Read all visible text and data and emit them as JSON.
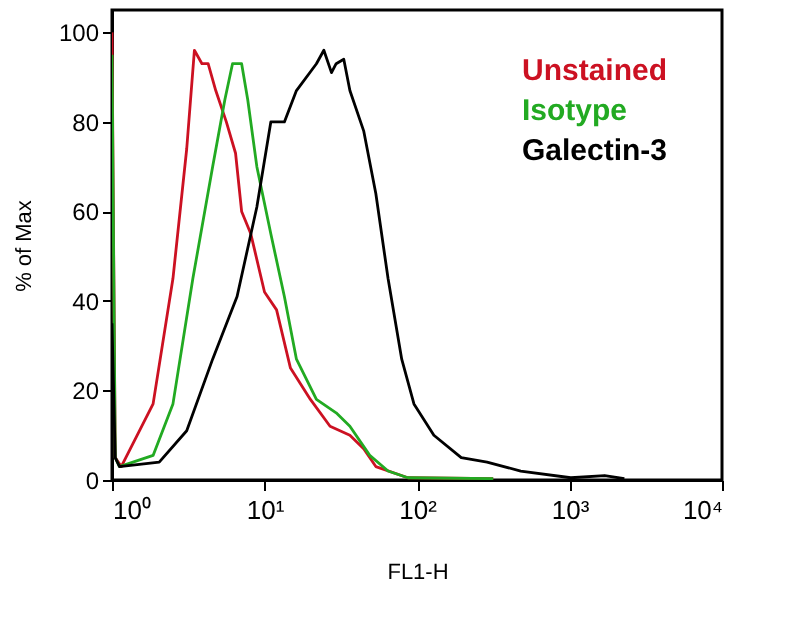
{
  "chart_data": {
    "type": "line",
    "xlabel": "FL1-H",
    "ylabel": "% of Max",
    "log": "x",
    "xlim": [
      1,
      10000
    ],
    "ylim": [
      0,
      105
    ],
    "xticks": [
      {
        "value": 1,
        "label": "10⁰"
      },
      {
        "value": 10,
        "label": "10¹"
      },
      {
        "value": 100,
        "label": "10²"
      },
      {
        "value": 1000,
        "label": "10³"
      },
      {
        "value": 10000,
        "label": "10⁴"
      }
    ],
    "yticks": [
      0,
      20,
      40,
      60,
      80,
      100
    ],
    "grid": false,
    "legend": "top right",
    "marker": "none",
    "line_style": "solid",
    "series": [
      {
        "name": "Unstained",
        "color": "#cc1122",
        "x": [
          1,
          1.05,
          1.15,
          1.86,
          2.51,
          3.09,
          3.47,
          3.89,
          4.27,
          4.79,
          5.62,
          6.46,
          7.08,
          8.13,
          10,
          12,
          14.8,
          20,
          26.9,
          36.3,
          44.7,
          53.7,
          87.1,
          316
        ],
        "values": [
          100,
          5,
          3,
          17,
          45,
          74,
          96,
          93,
          93,
          87,
          80,
          73,
          60,
          55,
          42,
          38,
          25,
          18,
          12,
          10,
          7,
          3,
          0.5,
          0.3
        ]
      },
      {
        "name": "Isotype",
        "color": "#22aa22",
        "x": [
          1,
          1.05,
          1.12,
          1.86,
          2.51,
          3.39,
          4.57,
          5.5,
          6.17,
          7.08,
          7.76,
          8.91,
          11,
          13.5,
          16.2,
          21.9,
          29.5,
          36.3,
          49,
          64.6,
          87.1,
          316
        ],
        "values": [
          95,
          5,
          3,
          5.5,
          17,
          45,
          70,
          85,
          93,
          93,
          85,
          70,
          55,
          41,
          27,
          18,
          15,
          12,
          5.5,
          2,
          0.5,
          0.3
        ]
      },
      {
        "name": "Galectin-3",
        "color": "#000000",
        "x": [
          1,
          1.05,
          1.12,
          2.04,
          3.09,
          4.57,
          6.61,
          8.91,
          11,
          13.5,
          16.2,
          21.9,
          24.5,
          27.5,
          29.5,
          33.1,
          36.3,
          44.7,
          53.7,
          64.6,
          79.4,
          95.5,
          129,
          195,
          288,
          479,
          1020,
          1700,
          2290
        ],
        "values": [
          35,
          5,
          3,
          4,
          11,
          27,
          41,
          61,
          80,
          80,
          87,
          93,
          96,
          91,
          93,
          94,
          87,
          78,
          64,
          45,
          27,
          17,
          10,
          5,
          4,
          2,
          0.5,
          1,
          0.3
        ]
      }
    ]
  }
}
